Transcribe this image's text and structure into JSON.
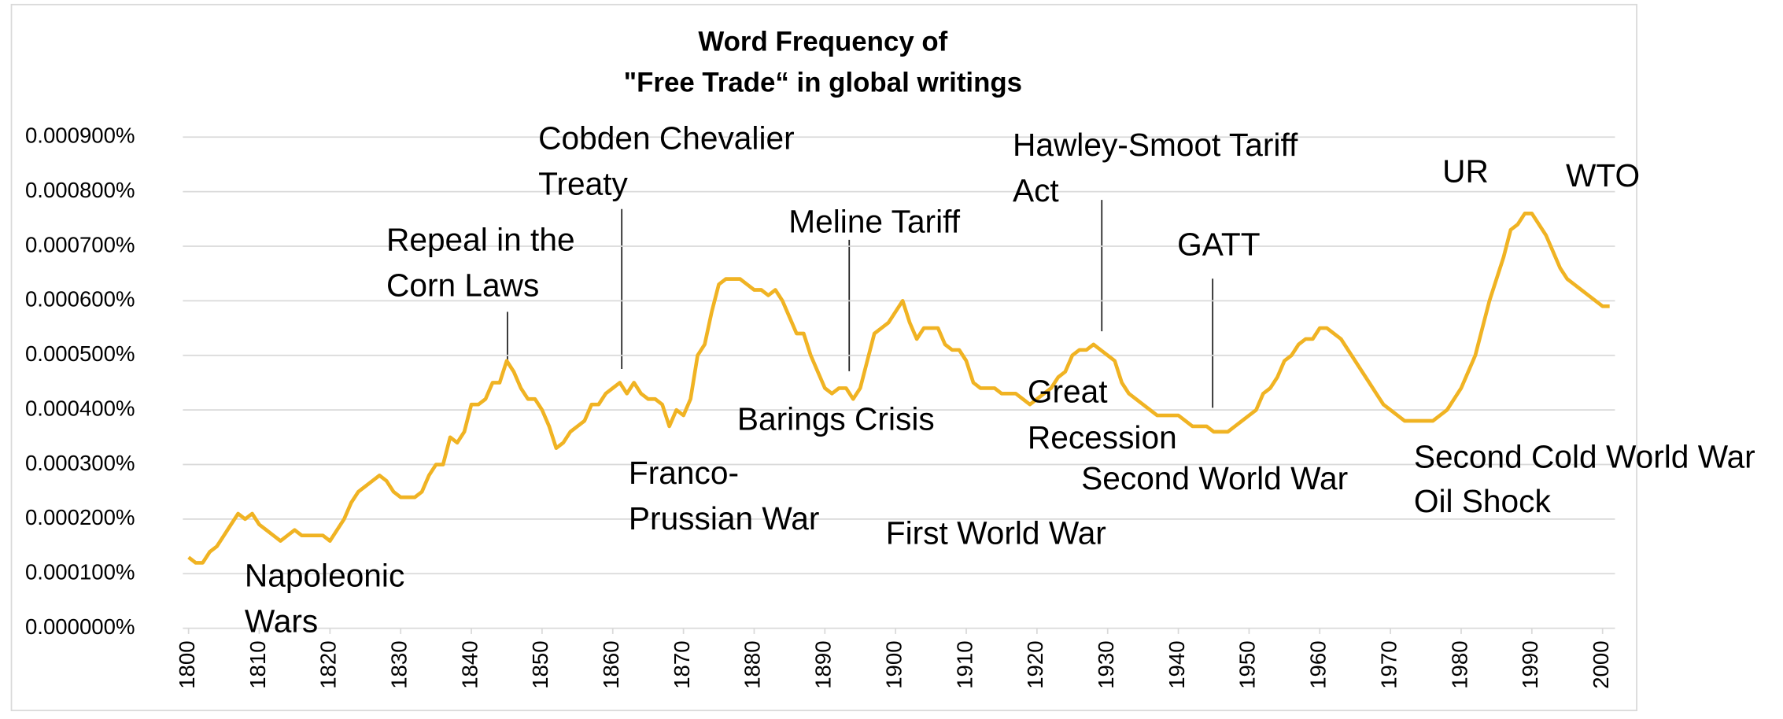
{
  "chart_data": {
    "type": "line",
    "title": [
      "Word Frequency of",
      "\"Free Trade“ in global writings"
    ],
    "x": [
      1800,
      1801,
      1802,
      1803,
      1804,
      1805,
      1806,
      1807,
      1808,
      1809,
      1810,
      1811,
      1812,
      1813,
      1814,
      1815,
      1816,
      1817,
      1818,
      1819,
      1820,
      1821,
      1822,
      1823,
      1824,
      1825,
      1826,
      1827,
      1828,
      1829,
      1830,
      1831,
      1832,
      1833,
      1834,
      1835,
      1836,
      1837,
      1838,
      1839,
      1840,
      1841,
      1842,
      1843,
      1844,
      1845,
      1846,
      1847,
      1848,
      1849,
      1850,
      1851,
      1852,
      1853,
      1854,
      1855,
      1856,
      1857,
      1858,
      1859,
      1860,
      1861,
      1862,
      1863,
      1864,
      1865,
      1866,
      1867,
      1868,
      1869,
      1870,
      1871,
      1872,
      1873,
      1874,
      1875,
      1876,
      1877,
      1878,
      1879,
      1880,
      1881,
      1882,
      1883,
      1884,
      1885,
      1886,
      1887,
      1888,
      1889,
      1890,
      1891,
      1892,
      1893,
      1894,
      1895,
      1896,
      1897,
      1898,
      1899,
      1900,
      1901,
      1902,
      1903,
      1904,
      1905,
      1906,
      1907,
      1908,
      1909,
      1910,
      1911,
      1912,
      1913,
      1914,
      1915,
      1916,
      1917,
      1918,
      1919,
      1920,
      1921,
      1922,
      1923,
      1924,
      1925,
      1926,
      1927,
      1928,
      1929,
      1930,
      1931,
      1932,
      1933,
      1934,
      1935,
      1936,
      1937,
      1938,
      1939,
      1940,
      1941,
      1942,
      1943,
      1944,
      1945,
      1946,
      1947,
      1948,
      1949,
      1950,
      1951,
      1952,
      1953,
      1954,
      1955,
      1956,
      1957,
      1958,
      1959,
      1960,
      1961,
      1962,
      1963,
      1964,
      1965,
      1966,
      1967,
      1968,
      1969,
      1970,
      1971,
      1972,
      1973,
      1974,
      1975,
      1976,
      1977,
      1978,
      1979,
      1980,
      1981,
      1982,
      1983,
      1984,
      1985,
      1986,
      1987,
      1988,
      1989,
      1990,
      1991,
      1992,
      1993,
      1994,
      1995,
      1996,
      1997,
      1998,
      1999,
      2000,
      2001
    ],
    "series": [
      {
        "name": "Free Trade",
        "color": "#f0b323",
        "values": [
          0.00013,
          0.00012,
          0.00012,
          0.00014,
          0.00015,
          0.00017,
          0.00019,
          0.00021,
          0.0002,
          0.00021,
          0.00019,
          0.00018,
          0.00017,
          0.00016,
          0.00017,
          0.00018,
          0.00017,
          0.00017,
          0.00017,
          0.00017,
          0.00016,
          0.00018,
          0.0002,
          0.00023,
          0.00025,
          0.00026,
          0.00027,
          0.00028,
          0.00027,
          0.00025,
          0.00024,
          0.00024,
          0.00024,
          0.00025,
          0.00028,
          0.0003,
          0.0003,
          0.00035,
          0.00034,
          0.00036,
          0.00041,
          0.00041,
          0.00042,
          0.00045,
          0.00045,
          0.00049,
          0.00047,
          0.00044,
          0.00042,
          0.00042,
          0.0004,
          0.00037,
          0.00033,
          0.00034,
          0.00036,
          0.00037,
          0.00038,
          0.00041,
          0.00041,
          0.00043,
          0.00044,
          0.00045,
          0.00043,
          0.00045,
          0.00043,
          0.00042,
          0.00042,
          0.00041,
          0.00037,
          0.0004,
          0.00039,
          0.00042,
          0.0005,
          0.00052,
          0.00058,
          0.00063,
          0.00064,
          0.00064,
          0.00064,
          0.00063,
          0.00062,
          0.00062,
          0.00061,
          0.00062,
          0.0006,
          0.00057,
          0.00054,
          0.00054,
          0.0005,
          0.00047,
          0.00044,
          0.00043,
          0.00044,
          0.00044,
          0.00042,
          0.00044,
          0.00049,
          0.00054,
          0.00055,
          0.00056,
          0.00058,
          0.0006,
          0.00056,
          0.00053,
          0.00055,
          0.00055,
          0.00055,
          0.00052,
          0.00051,
          0.00051,
          0.00049,
          0.00045,
          0.00044,
          0.00044,
          0.00044,
          0.00043,
          0.00043,
          0.00043,
          0.00042,
          0.00041,
          0.00042,
          0.00043,
          0.00044,
          0.00046,
          0.00047,
          0.0005,
          0.00051,
          0.00051,
          0.00052,
          0.00051,
          0.0005,
          0.00049,
          0.00045,
          0.00043,
          0.00042,
          0.00041,
          0.0004,
          0.00039,
          0.00039,
          0.00039,
          0.00039,
          0.00038,
          0.00037,
          0.00037,
          0.00037,
          0.00036,
          0.00036,
          0.00036,
          0.00037,
          0.00038,
          0.00039,
          0.0004,
          0.00043,
          0.00044,
          0.00046,
          0.00049,
          0.0005,
          0.00052,
          0.00053,
          0.00053,
          0.00055,
          0.00055,
          0.00054,
          0.00053,
          0.00051,
          0.00049,
          0.00047,
          0.00045,
          0.00043,
          0.00041,
          0.0004,
          0.00039,
          0.00038,
          0.00038,
          0.00038,
          0.00038,
          0.00038,
          0.00039,
          0.0004,
          0.00042,
          0.00044,
          0.00047,
          0.0005,
          0.00055,
          0.0006,
          0.00064,
          0.00068,
          0.00073,
          0.00074,
          0.00076,
          0.00076,
          0.00074,
          0.00072,
          0.00069,
          0.00066,
          0.00064,
          0.00063,
          0.00062,
          0.00061,
          0.0006,
          0.00059,
          0.00059
        ]
      }
    ],
    "xlim": [
      1799,
      2002
    ],
    "xticks": [
      1800,
      1810,
      1820,
      1830,
      1840,
      1850,
      1860,
      1870,
      1880,
      1890,
      1900,
      1910,
      1920,
      1930,
      1940,
      1950,
      1960,
      1970,
      1980,
      1990,
      2000
    ],
    "ylim": [
      0,
      0.0009
    ],
    "yticks": [
      {
        "value": 0,
        "label": "0.000000%"
      },
      {
        "value": 0.0001,
        "label": "0.000100%"
      },
      {
        "value": 0.0002,
        "label": "0.000200%"
      },
      {
        "value": 0.0003,
        "label": "0.000300%"
      },
      {
        "value": 0.0004,
        "label": "0.000400%"
      },
      {
        "value": 0.0005,
        "label": "0.000500%"
      },
      {
        "value": 0.0006,
        "label": "0.000600%"
      },
      {
        "value": 0.0007,
        "label": "0.000700%"
      },
      {
        "value": 0.0008,
        "label": "0.000800%"
      },
      {
        "value": 0.0009,
        "label": "0.000900%"
      }
    ],
    "grid": true,
    "annotations": [
      [
        "Napoleonic",
        "Wars"
      ],
      [
        "Repeal in the",
        "Corn Laws"
      ],
      [
        "Cobden Chevalier",
        "Treaty"
      ],
      [
        "Franco-",
        "Prussian War"
      ],
      [
        "Meline Tariff"
      ],
      [
        "Barings Crisis"
      ],
      [
        "First World War"
      ],
      [
        "Hawley-Smoot Tariff",
        "Act"
      ],
      [
        "Great",
        "Recession"
      ],
      [
        "Second World War"
      ],
      [
        "GATT"
      ],
      [
        "UR"
      ],
      [
        "WTO"
      ],
      [
        "Second Cold World War"
      ],
      [
        "Oil Shock"
      ]
    ]
  }
}
